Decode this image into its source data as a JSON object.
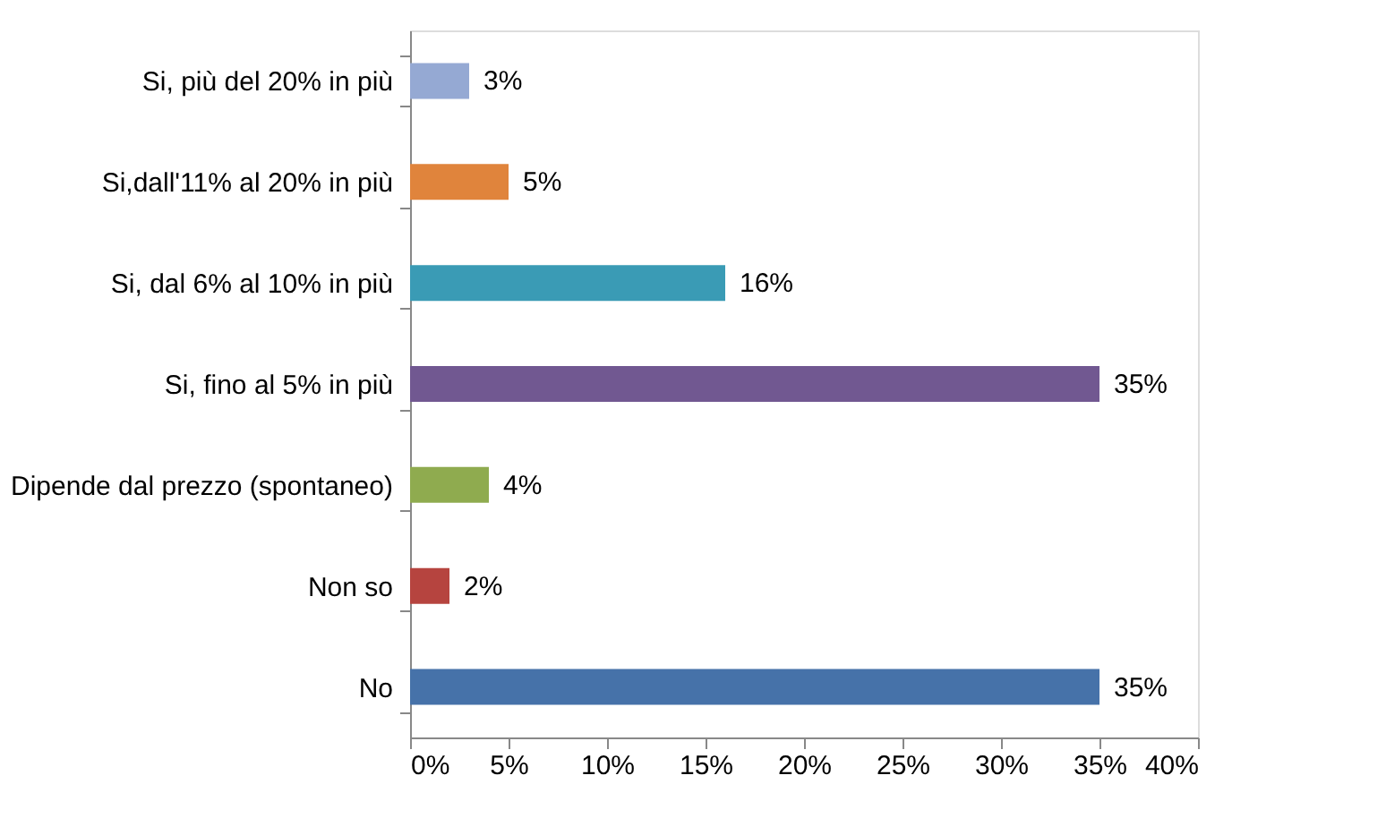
{
  "chart_data": {
    "type": "bar",
    "orientation": "horizontal",
    "categories": [
      "Si, più del 20% in più",
      "Si,dall'11% al 20% in più",
      "Si, dal 6% al 10% in più",
      "Si, fino al 5% in più",
      "Dipende dal prezzo (spontaneo)",
      "Non so",
      "No"
    ],
    "values": [
      3,
      5,
      16,
      35,
      4,
      2,
      35
    ],
    "colors": [
      "#95a9d3",
      "#e0843c",
      "#3a9bb5",
      "#715891",
      "#8fab4f",
      "#b6443f",
      "#4672a9"
    ],
    "value_labels": [
      "3%",
      "5%",
      "16%",
      "35%",
      "4%",
      "2%",
      "35%"
    ],
    "xlim": [
      0,
      40
    ],
    "xticks": [
      {
        "value": 0,
        "label": "0%"
      },
      {
        "value": 5,
        "label": "5%"
      },
      {
        "value": 10,
        "label": "10%"
      },
      {
        "value": 15,
        "label": "15%"
      },
      {
        "value": 20,
        "label": "20%"
      },
      {
        "value": 25,
        "label": "25%"
      },
      {
        "value": 30,
        "label": "30%"
      },
      {
        "value": 35,
        "label": "35%"
      },
      {
        "value": 40,
        "label": "40%"
      }
    ],
    "grid": false
  }
}
